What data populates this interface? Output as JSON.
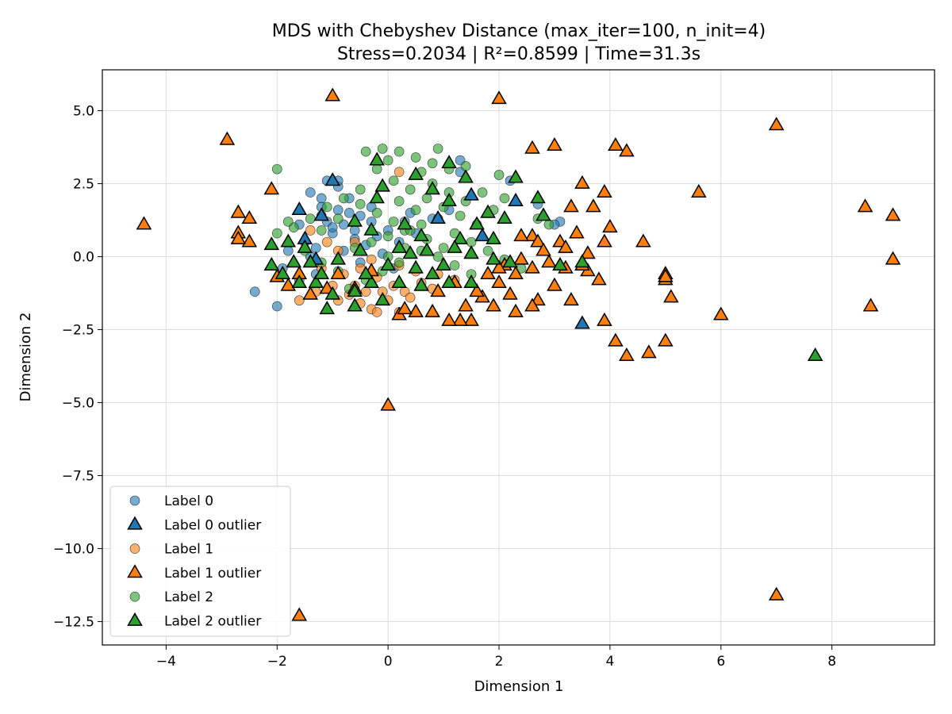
{
  "chart_data": {
    "type": "scatter",
    "title": "MDS with Chebyshev Distance (max_iter=100, n_init=4)",
    "subtitle": "Stress=0.2034 | R²=0.8599 | Time=31.3s",
    "xlabel": "Dimension 1",
    "ylabel": "Dimension 2",
    "xlim": [
      -5.15,
      9.85
    ],
    "ylim": [
      -13.3,
      6.4
    ],
    "xticks": [
      -4,
      -2,
      0,
      2,
      4,
      6,
      8
    ],
    "yticks": [
      5.0,
      2.5,
      0.0,
      -2.5,
      -5.0,
      -7.5,
      -10.0,
      -12.5
    ],
    "xtick_labels": [
      "−4",
      "−2",
      "0",
      "2",
      "4",
      "6",
      "8"
    ],
    "ytick_labels": [
      "5.0",
      "2.5",
      "0.0",
      "−2.5",
      "−5.0",
      "−7.5",
      "−10.0",
      "−12.5"
    ],
    "grid": true,
    "legend_position": "lower-left",
    "colors": {
      "label0": "#1f77b4",
      "label1": "#ff7f0e",
      "label2": "#2ca02c"
    },
    "series": [
      {
        "name": "Label 0",
        "marker": "circle",
        "color": "#1f77b4",
        "points": [
          [
            -1.2,
            1.4
          ],
          [
            -1.1,
            1.2
          ],
          [
            -0.9,
            1.6
          ],
          [
            -0.8,
            1.1
          ],
          [
            -1.4,
            2.2
          ],
          [
            -1.2,
            2.0
          ],
          [
            -0.9,
            2.4
          ],
          [
            -0.7,
            2.0
          ],
          [
            -1.0,
            0.8
          ],
          [
            -0.6,
            0.9
          ],
          [
            -0.5,
            1.4
          ],
          [
            -0.3,
            1.2
          ],
          [
            -0.2,
            0.7
          ],
          [
            0.0,
            0.9
          ],
          [
            0.3,
            1.2
          ],
          [
            -1.3,
            0.3
          ],
          [
            -1.5,
            0.5
          ],
          [
            -1.8,
            0.2
          ],
          [
            -1.9,
            -0.4
          ],
          [
            -1.6,
            -0.8
          ],
          [
            -1.3,
            -0.6
          ],
          [
            -0.8,
            0.2
          ],
          [
            -0.4,
            0.4
          ],
          [
            -0.1,
            0.1
          ],
          [
            0.2,
            0.5
          ],
          [
            0.5,
            0.8
          ],
          [
            0.8,
            1.3
          ],
          [
            1.1,
            1.6
          ],
          [
            -2.4,
            -1.2
          ],
          [
            -2.0,
            -1.7
          ],
          [
            -0.9,
            2.6
          ],
          [
            -1.1,
            2.6
          ],
          [
            1.3,
            2.9
          ],
          [
            1.3,
            3.3
          ],
          [
            2.2,
            2.6
          ],
          [
            2.7,
            1.8
          ],
          [
            3.1,
            1.2
          ],
          [
            3.0,
            1.1
          ],
          [
            0.4,
            1.5
          ],
          [
            -0.6,
            0.6
          ],
          [
            -1.0,
            1.0
          ],
          [
            -0.7,
            1.5
          ],
          [
            -1.2,
            1.7
          ],
          [
            -0.3,
            1.7
          ],
          [
            -1.6,
            1.1
          ],
          [
            -1.4,
            0.0
          ],
          [
            -0.5,
            -0.2
          ],
          [
            0.1,
            -0.4
          ]
        ]
      },
      {
        "name": "Label 0 outlier",
        "marker": "triangle",
        "color": "#1f77b4",
        "points": [
          [
            -1.0,
            2.6
          ],
          [
            -1.6,
            1.6
          ],
          [
            -1.5,
            0.6
          ],
          [
            -1.3,
            -0.1
          ],
          [
            1.5,
            2.1
          ],
          [
            2.3,
            1.9
          ],
          [
            1.7,
            0.7
          ],
          [
            3.5,
            -2.3
          ],
          [
            0.9,
            1.3
          ],
          [
            -1.2,
            1.4
          ]
        ]
      },
      {
        "name": "Label 1",
        "marker": "circle",
        "color": "#ff7f0e",
        "points": [
          [
            -1.6,
            -1.5
          ],
          [
            -1.3,
            -1.2
          ],
          [
            -1.0,
            -1.0
          ],
          [
            -0.7,
            -1.3
          ],
          [
            -0.5,
            -1.6
          ],
          [
            -0.3,
            -1.8
          ],
          [
            0.0,
            -1.5
          ],
          [
            0.3,
            -1.2
          ],
          [
            0.6,
            -0.9
          ],
          [
            0.9,
            -0.6
          ],
          [
            -0.8,
            -0.6
          ],
          [
            -0.5,
            -0.4
          ],
          [
            -0.2,
            -0.7
          ],
          [
            0.1,
            -1.0
          ],
          [
            0.4,
            -1.4
          ],
          [
            -1.2,
            -0.4
          ],
          [
            -0.9,
            0.2
          ],
          [
            -0.6,
            0.5
          ],
          [
            -0.3,
            -0.1
          ],
          [
            0.2,
            -0.3
          ],
          [
            0.5,
            -0.5
          ],
          [
            0.2,
            2.9
          ],
          [
            -1.4,
            0.9
          ],
          [
            -1.1,
            0.5
          ],
          [
            -0.2,
            -1.9
          ],
          [
            0.2,
            -1.9
          ],
          [
            -0.4,
            -1.2
          ],
          [
            -0.9,
            -1.5
          ],
          [
            1.2,
            -0.8
          ],
          [
            0.8,
            -1.1
          ],
          [
            -0.1,
            -1.2
          ],
          [
            -0.6,
            -1.0
          ]
        ]
      },
      {
        "name": "Label 1 outlier",
        "marker": "triangle",
        "color": "#ff7f0e",
        "points": [
          [
            -1.0,
            5.5
          ],
          [
            2.0,
            5.4
          ],
          [
            7.0,
            4.5
          ],
          [
            -2.9,
            4.0
          ],
          [
            2.6,
            3.7
          ],
          [
            3.0,
            3.8
          ],
          [
            4.1,
            3.8
          ],
          [
            4.3,
            3.6
          ],
          [
            -2.1,
            2.3
          ],
          [
            3.5,
            2.5
          ],
          [
            3.9,
            2.2
          ],
          [
            5.6,
            2.2
          ],
          [
            -4.4,
            1.1
          ],
          [
            -2.7,
            1.5
          ],
          [
            -2.5,
            1.3
          ],
          [
            -2.7,
            0.8
          ],
          [
            -2.5,
            0.5
          ],
          [
            -2.7,
            0.6
          ],
          [
            3.3,
            1.7
          ],
          [
            3.7,
            1.7
          ],
          [
            4.0,
            1.0
          ],
          [
            8.6,
            1.7
          ],
          [
            9.1,
            1.4
          ],
          [
            4.6,
            0.5
          ],
          [
            9.1,
            -0.1
          ],
          [
            2.6,
            0.7
          ],
          [
            2.7,
            0.5
          ],
          [
            3.1,
            0.5
          ],
          [
            3.4,
            0.8
          ],
          [
            3.9,
            0.5
          ],
          [
            5.0,
            -0.6
          ],
          [
            5.0,
            -0.8
          ],
          [
            5.0,
            -0.7
          ],
          [
            5.1,
            -1.4
          ],
          [
            8.7,
            -1.7
          ],
          [
            6.0,
            -2.0
          ],
          [
            4.1,
            -2.9
          ],
          [
            4.3,
            -3.4
          ],
          [
            4.7,
            -3.3
          ],
          [
            5.0,
            -2.9
          ],
          [
            3.9,
            -2.2
          ],
          [
            3.3,
            -1.5
          ],
          [
            3.2,
            -0.4
          ],
          [
            3.6,
            -0.5
          ],
          [
            3.8,
            -0.8
          ],
          [
            3.0,
            -1.0
          ],
          [
            2.7,
            -1.5
          ],
          [
            2.6,
            -1.7
          ],
          [
            2.3,
            -1.9
          ],
          [
            1.9,
            -1.7
          ],
          [
            1.7,
            -1.4
          ],
          [
            1.5,
            -2.2
          ],
          [
            1.3,
            -2.2
          ],
          [
            1.1,
            -2.2
          ],
          [
            0.8,
            -1.9
          ],
          [
            0.5,
            -1.9
          ],
          [
            0.2,
            -2.0
          ],
          [
            0.3,
            -1.8
          ],
          [
            0.0,
            -5.1
          ],
          [
            -1.6,
            -12.3
          ],
          [
            7.0,
            -11.6
          ],
          [
            -2.0,
            -0.7
          ],
          [
            -1.8,
            -1.0
          ],
          [
            -1.6,
            -0.6
          ],
          [
            -1.4,
            -1.3
          ],
          [
            -1.1,
            -1.1
          ],
          [
            -0.9,
            -0.6
          ],
          [
            -0.6,
            -1.1
          ],
          [
            -0.3,
            -0.5
          ],
          [
            2.1,
            -0.3
          ],
          [
            2.3,
            -0.6
          ],
          [
            2.4,
            -0.1
          ],
          [
            2.6,
            -0.4
          ],
          [
            2.9,
            -0.2
          ],
          [
            1.2,
            -0.9
          ],
          [
            1.6,
            -1.2
          ],
          [
            1.8,
            -0.6
          ],
          [
            2.0,
            -0.9
          ],
          [
            2.2,
            -1.3
          ],
          [
            2.8,
            0.2
          ],
          [
            3.6,
            0.1
          ],
          [
            3.5,
            -0.3
          ],
          [
            1.4,
            -1.7
          ],
          [
            0.9,
            -1.2
          ],
          [
            2.4,
            0.7
          ],
          [
            2.0,
            -0.4
          ],
          [
            3.2,
            0.3
          ]
        ]
      },
      {
        "name": "Label 2",
        "marker": "circle",
        "color": "#2ca02c",
        "points": [
          [
            -0.4,
            3.6
          ],
          [
            -0.1,
            3.7
          ],
          [
            0.2,
            3.6
          ],
          [
            0.5,
            3.4
          ],
          [
            0.8,
            3.2
          ],
          [
            1.1,
            3.0
          ],
          [
            -0.2,
            3.0
          ],
          [
            0.1,
            2.6
          ],
          [
            0.4,
            2.3
          ],
          [
            0.7,
            2.0
          ],
          [
            1.0,
            1.7
          ],
          [
            1.3,
            1.4
          ],
          [
            1.6,
            1.1
          ],
          [
            1.9,
            1.6
          ],
          [
            2.1,
            2.0
          ],
          [
            2.0,
            2.8
          ],
          [
            -0.5,
            2.3
          ],
          [
            -0.8,
            2.0
          ],
          [
            -1.1,
            1.7
          ],
          [
            -1.4,
            1.3
          ],
          [
            -1.7,
            1.0
          ],
          [
            -2.0,
            0.8
          ],
          [
            -2.0,
            3.0
          ],
          [
            -1.8,
            1.2
          ],
          [
            -0.6,
            0.3
          ],
          [
            -0.3,
            0.5
          ],
          [
            0.0,
            0.7
          ],
          [
            0.3,
            0.9
          ],
          [
            0.6,
            1.1
          ],
          [
            0.9,
            1.3
          ],
          [
            1.2,
            0.8
          ],
          [
            1.5,
            0.5
          ],
          [
            1.8,
            0.2
          ],
          [
            2.1,
            -0.1
          ],
          [
            2.4,
            -0.4
          ],
          [
            0.6,
            0.2
          ],
          [
            0.9,
            0.0
          ],
          [
            1.2,
            -0.3
          ],
          [
            1.5,
            -0.6
          ],
          [
            0.2,
            -0.2
          ],
          [
            -0.1,
            -0.5
          ],
          [
            -0.4,
            -0.8
          ],
          [
            -0.7,
            -1.1
          ],
          [
            -0.5,
            1.8
          ],
          [
            -0.2,
            1.5
          ],
          [
            0.1,
            1.2
          ],
          [
            0.4,
            0.9
          ],
          [
            0.7,
            0.6
          ],
          [
            1.0,
            0.3
          ],
          [
            2.7,
            1.3
          ],
          [
            2.9,
            1.1
          ],
          [
            0.8,
            2.5
          ],
          [
            1.1,
            2.2
          ],
          [
            1.4,
            1.9
          ],
          [
            1.7,
            2.2
          ],
          [
            0.5,
            1.6
          ],
          [
            0.2,
            1.9
          ],
          [
            -0.9,
            1.3
          ],
          [
            -1.2,
            0.9
          ],
          [
            -1.5,
            0.2
          ],
          [
            -1.2,
            -0.2
          ],
          [
            -0.9,
            -0.5
          ],
          [
            0.3,
            0.3
          ],
          [
            0.0,
            0.0
          ],
          [
            1.4,
            3.1
          ],
          [
            0.9,
            3.7
          ],
          [
            0.0,
            3.3
          ],
          [
            0.6,
            2.9
          ]
        ]
      },
      {
        "name": "Label 2 outlier",
        "marker": "triangle",
        "color": "#2ca02c",
        "points": [
          [
            -0.2,
            3.3
          ],
          [
            1.1,
            3.2
          ],
          [
            0.5,
            2.8
          ],
          [
            1.4,
            2.7
          ],
          [
            2.3,
            2.7
          ],
          [
            -0.1,
            2.4
          ],
          [
            0.8,
            2.3
          ],
          [
            2.7,
            2.0
          ],
          [
            -0.2,
            2.0
          ],
          [
            1.1,
            1.9
          ],
          [
            1.8,
            1.5
          ],
          [
            2.1,
            1.3
          ],
          [
            2.8,
            1.4
          ],
          [
            -0.6,
            1.2
          ],
          [
            0.2,
            0.3
          ],
          [
            0.6,
            0.7
          ],
          [
            1.3,
            0.6
          ],
          [
            1.9,
            0.6
          ],
          [
            -2.1,
            0.4
          ],
          [
            -1.8,
            0.5
          ],
          [
            -1.5,
            0.3
          ],
          [
            -1.4,
            -0.2
          ],
          [
            -0.9,
            -0.1
          ],
          [
            -0.5,
            0.2
          ],
          [
            0.0,
            -0.3
          ],
          [
            0.5,
            -0.4
          ],
          [
            1.0,
            -0.3
          ],
          [
            1.5,
            0.1
          ],
          [
            1.9,
            -0.1
          ],
          [
            2.2,
            -0.2
          ],
          [
            -2.1,
            -0.3
          ],
          [
            -1.9,
            -0.6
          ],
          [
            -1.6,
            -0.9
          ],
          [
            -1.3,
            -0.9
          ],
          [
            -1.0,
            -1.3
          ],
          [
            -0.6,
            -1.2
          ],
          [
            -0.3,
            -0.9
          ],
          [
            0.2,
            -0.9
          ],
          [
            0.6,
            -1.0
          ],
          [
            1.1,
            -0.9
          ],
          [
            1.5,
            -0.9
          ],
          [
            3.1,
            -0.3
          ],
          [
            3.5,
            -0.2
          ],
          [
            -1.1,
            -1.8
          ],
          [
            -0.6,
            -1.7
          ],
          [
            -0.1,
            -1.5
          ],
          [
            0.8,
            -0.6
          ],
          [
            0.4,
            0.1
          ],
          [
            7.7,
            -3.4
          ],
          [
            -1.7,
            -0.2
          ],
          [
            -1.2,
            -0.6
          ],
          [
            -0.4,
            -0.6
          ],
          [
            0.7,
            0.2
          ],
          [
            1.2,
            0.3
          ],
          [
            1.6,
            1.1
          ],
          [
            0.3,
            1.1
          ],
          [
            -0.3,
            0.9
          ]
        ]
      }
    ]
  }
}
